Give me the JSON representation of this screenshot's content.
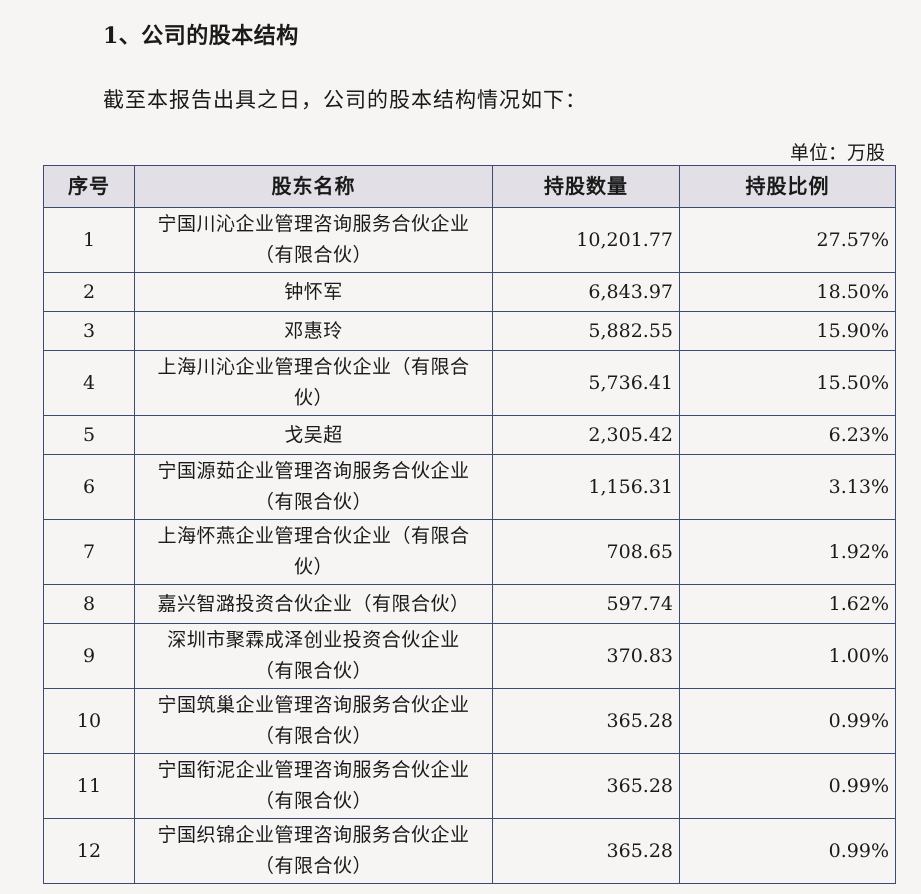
{
  "heading": "1、公司的股本结构",
  "intro": "截至本报告出具之日，公司的股本结构情况如下：",
  "unit": "单位：万股",
  "table": {
    "headers": [
      "序号",
      "股东名称",
      "持股数量",
      "持股比例"
    ],
    "rows": [
      {
        "seq": "1",
        "name1": "宁国川沁企业管理咨询服务合伙企业",
        "name2": "（有限合伙）",
        "shares": "10,201.77",
        "ratio": "27.57%"
      },
      {
        "seq": "2",
        "name1": "钟怀军",
        "name2": "",
        "shares": "6,843.97",
        "ratio": "18.50%"
      },
      {
        "seq": "3",
        "name1": "邓惠玲",
        "name2": "",
        "shares": "5,882.55",
        "ratio": "15.90%"
      },
      {
        "seq": "4",
        "name1": "上海川沁企业管理合伙企业（有限合",
        "name2": "伙）",
        "shares": "5,736.41",
        "ratio": "15.50%"
      },
      {
        "seq": "5",
        "name1": "戈吴超",
        "name2": "",
        "shares": "2,305.42",
        "ratio": "6.23%"
      },
      {
        "seq": "6",
        "name1": "宁国源茹企业管理咨询服务合伙企业",
        "name2": "（有限合伙）",
        "shares": "1,156.31",
        "ratio": "3.13%"
      },
      {
        "seq": "7",
        "name1": "上海怀燕企业管理合伙企业（有限合",
        "name2": "伙）",
        "shares": "708.65",
        "ratio": "1.92%"
      },
      {
        "seq": "8",
        "name1": "嘉兴智潞投资合伙企业（有限合伙）",
        "name2": "",
        "shares": "597.74",
        "ratio": "1.62%"
      },
      {
        "seq": "9",
        "name1": "深圳市聚霖成泽创业投资合伙企业",
        "name2": "（有限合伙）",
        "shares": "370.83",
        "ratio": "1.00%"
      },
      {
        "seq": "10",
        "name1": "宁国筑巢企业管理咨询服务合伙企业",
        "name2": "（有限合伙）",
        "shares": "365.28",
        "ratio": "0.99%"
      },
      {
        "seq": "11",
        "name1": "宁国衔泥企业管理咨询服务合伙企业",
        "name2": "（有限合伙）",
        "shares": "365.28",
        "ratio": "0.99%"
      },
      {
        "seq": "12",
        "name1": "宁国织锦企业管理咨询服务合伙企业",
        "name2": "（有限合伙）",
        "shares": "365.28",
        "ratio": "0.99%"
      }
    ]
  }
}
